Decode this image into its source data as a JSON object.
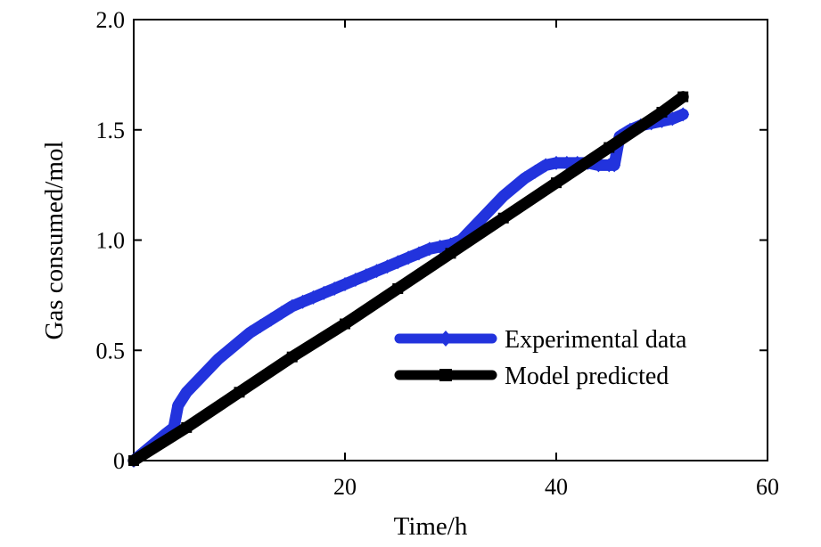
{
  "chart_data": {
    "type": "line",
    "title": "",
    "xlabel": "Time/h",
    "ylabel": "Gas consumed/mol",
    "xlim": [
      0,
      60
    ],
    "ylim": [
      0,
      2.0
    ],
    "x_ticks": [
      20,
      40,
      60
    ],
    "x_tick_labels": [
      "20",
      "40",
      "60"
    ],
    "y_ticks": [
      0,
      0.5,
      1.0,
      1.5,
      2.0
    ],
    "y_tick_labels": [
      "0",
      "0.5",
      "1.0",
      "1.5",
      "2.0"
    ],
    "grid": false,
    "legend_position": "center-right",
    "series": [
      {
        "name": "Experimental data",
        "color": "#2233dd",
        "marker": "diamond",
        "x": [
          0,
          1,
          2,
          3,
          3.8,
          4.2,
          5,
          6,
          7,
          8,
          9,
          10,
          11,
          12,
          13,
          14,
          15,
          16,
          17,
          18,
          19,
          20,
          21,
          22,
          23,
          24,
          25,
          26,
          27,
          28,
          29,
          30,
          31,
          32,
          33,
          34,
          35,
          36,
          37,
          38,
          39,
          40,
          41,
          42,
          43,
          44,
          45,
          45.5,
          46,
          47,
          48,
          49,
          50,
          51,
          52
        ],
        "y": [
          0,
          0.04,
          0.08,
          0.12,
          0.15,
          0.25,
          0.31,
          0.36,
          0.41,
          0.46,
          0.5,
          0.54,
          0.58,
          0.61,
          0.64,
          0.67,
          0.7,
          0.72,
          0.74,
          0.76,
          0.78,
          0.8,
          0.82,
          0.84,
          0.86,
          0.88,
          0.9,
          0.92,
          0.94,
          0.96,
          0.97,
          0.98,
          1.0,
          1.05,
          1.1,
          1.15,
          1.2,
          1.24,
          1.28,
          1.31,
          1.34,
          1.35,
          1.35,
          1.35,
          1.35,
          1.34,
          1.34,
          1.34,
          1.47,
          1.5,
          1.52,
          1.53,
          1.54,
          1.55,
          1.57
        ]
      },
      {
        "name": "Model predicted",
        "color": "#000000",
        "marker": "square",
        "x": [
          0,
          5,
          10,
          15,
          20,
          25,
          30,
          35,
          40,
          45,
          50,
          52
        ],
        "y": [
          0,
          0.15,
          0.31,
          0.47,
          0.62,
          0.78,
          0.94,
          1.1,
          1.26,
          1.42,
          1.58,
          1.65
        ]
      }
    ]
  }
}
